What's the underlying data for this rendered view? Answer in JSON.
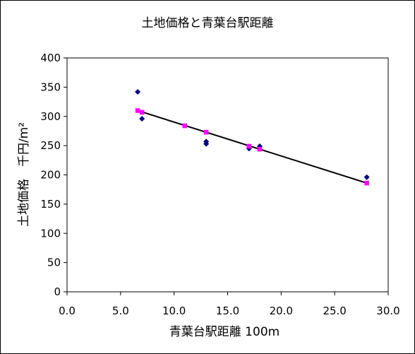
{
  "chart_data": {
    "type": "scatter",
    "title": "土地価格と青葉台駅距離",
    "xlabel": "青葉台駅距離 100m",
    "ylabel": "土地価格　千円/m²",
    "xlim": [
      0,
      30
    ],
    "ylim": [
      0,
      400
    ],
    "x_ticks": [
      "0.0",
      "5.0",
      "10.0",
      "15.0",
      "20.0",
      "25.0",
      "30.0"
    ],
    "y_ticks": [
      "0",
      "50",
      "100",
      "150",
      "200",
      "250",
      "300",
      "350",
      "400"
    ],
    "grid": false,
    "legend": "none",
    "series": [
      {
        "marker": "diamond",
        "color": "#000080",
        "points": [
          {
            "x": 6.6,
            "y": 342
          },
          {
            "x": 7.0,
            "y": 296
          },
          {
            "x": 13.0,
            "y": 257
          },
          {
            "x": 13.0,
            "y": 253
          },
          {
            "x": 17.0,
            "y": 245
          },
          {
            "x": 18.0,
            "y": 249
          },
          {
            "x": 28.0,
            "y": 196
          }
        ]
      },
      {
        "marker": "square",
        "color": "#ff00ff",
        "points": [
          {
            "x": 6.6,
            "y": 310
          },
          {
            "x": 7.0,
            "y": 307
          },
          {
            "x": 11.0,
            "y": 284
          },
          {
            "x": 13.0,
            "y": 273
          },
          {
            "x": 17.0,
            "y": 249
          },
          {
            "x": 18.0,
            "y": 244
          },
          {
            "x": 28.0,
            "y": 186
          }
        ]
      }
    ],
    "trendline": {
      "color": "#000000",
      "points": [
        {
          "x": 6.6,
          "y": 310
        },
        {
          "x": 28.0,
          "y": 186
        }
      ]
    }
  }
}
